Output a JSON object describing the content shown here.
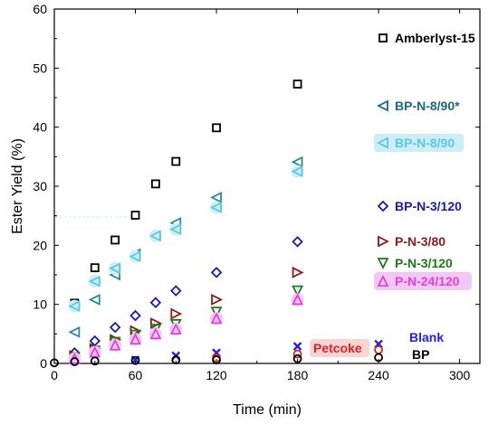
{
  "chart_data": {
    "type": "scatter",
    "xlabel": "Time (min)",
    "ylabel": "Ester Yield (%)",
    "xlim": [
      0,
      315
    ],
    "ylim": [
      0,
      60
    ],
    "xticks": [
      "0",
      "60",
      "120",
      "180",
      "240",
      "300"
    ],
    "yticks": [
      "0",
      "10",
      "20",
      "30",
      "40",
      "50",
      "60"
    ],
    "grid": false,
    "legend_placement": "right, beside data",
    "series": [
      {
        "name": "Amberlyst-15",
        "marker": "square",
        "color": "#000000",
        "x": [
          15,
          30,
          45,
          60,
          75,
          90,
          120,
          180
        ],
        "y": [
          10.2,
          16.2,
          20.9,
          25.1,
          30.4,
          34.2,
          39.9,
          47.3
        ]
      },
      {
        "name": "BP-N-8/90*",
        "marker": "triangle-left",
        "color": "#2a8a9a",
        "x": [
          15,
          30,
          45,
          60,
          90,
          120,
          180
        ],
        "y": [
          5.3,
          10.8,
          15.0,
          18.5,
          23.8,
          28.1,
          34.1
        ]
      },
      {
        "name": "BP-N-8/90",
        "marker": "triangle-left",
        "color": "#5bc8e0",
        "halo": "#cdeef7",
        "x": [
          15,
          30,
          45,
          60,
          75,
          90,
          120,
          180
        ],
        "y": [
          9.7,
          13.9,
          16.1,
          18.1,
          21.6,
          22.7,
          26.4,
          32.5
        ]
      },
      {
        "name": "BP-N-3/120",
        "marker": "diamond",
        "color": "#1a1aa6",
        "x": [
          15,
          30,
          45,
          60,
          75,
          90,
          120,
          180
        ],
        "y": [
          1.8,
          3.8,
          6.1,
          8.1,
          10.3,
          12.3,
          15.4,
          20.6
        ]
      },
      {
        "name": "P-N-3/80",
        "marker": "triangle-right",
        "color": "#8b1a1a",
        "x": [
          15,
          30,
          45,
          60,
          75,
          90,
          120,
          180
        ],
        "y": [
          1.3,
          2.5,
          4.0,
          5.5,
          6.8,
          8.4,
          10.8,
          15.4
        ]
      },
      {
        "name": "P-N-3/120",
        "marker": "triangle-down",
        "color": "#1a7a1a",
        "x": [
          15,
          30,
          45,
          60,
          75,
          90,
          120,
          180
        ],
        "y": [
          1.0,
          2.1,
          3.6,
          4.8,
          5.8,
          6.6,
          8.7,
          12.3
        ]
      },
      {
        "name": "P-N-24/120",
        "marker": "triangle-up",
        "color": "#e040e0",
        "halo": "#f4c8f4",
        "x": [
          15,
          30,
          45,
          60,
          75,
          90,
          120,
          180
        ],
        "y": [
          0.8,
          1.9,
          3.1,
          4.1,
          5.0,
          5.8,
          7.6,
          10.8
        ]
      },
      {
        "name": "Blank",
        "marker": "x",
        "color": "#2222dd",
        "x": [
          60,
          90,
          120,
          180,
          240
        ],
        "y": [
          0.6,
          1.3,
          1.8,
          2.9,
          3.3
        ]
      },
      {
        "name": "Petcoke",
        "marker": "circle",
        "color": "#dd2222",
        "x": [
          90,
          120,
          180,
          240
        ],
        "y": [
          0.6,
          0.9,
          1.6,
          2.3
        ]
      },
      {
        "name": "BP",
        "marker": "circle",
        "color": "#000000",
        "x": [
          0,
          15,
          30,
          60,
          90,
          120,
          180,
          240
        ],
        "y": [
          0.1,
          0.3,
          0.4,
          0.5,
          0.6,
          0.6,
          0.8,
          1.0
        ]
      }
    ],
    "legend": [
      {
        "label": "Amberlyst-15",
        "color": "#000000",
        "marker": "square"
      },
      {
        "label": "BP-N-8/90*",
        "color": "#1a6a7a",
        "marker": "triangle-left"
      },
      {
        "label": "BP-N-8/90",
        "color": "#5bc8e0",
        "marker": "triangle-left",
        "halo": "#cdeef7"
      },
      {
        "label": "BP-N-3/120",
        "color": "#1a1aa6",
        "marker": "diamond"
      },
      {
        "label": "P-N-3/80",
        "color": "#8b1a1a",
        "marker": "triangle-right"
      },
      {
        "label": "P-N-3/120",
        "color": "#1a7a1a",
        "marker": "triangle-down"
      },
      {
        "label": "P-N-24/120",
        "color": "#e040e0",
        "marker": "triangle-up",
        "halo": "#f4c8f4"
      },
      {
        "label": "Blank",
        "color": "#2222dd",
        "marker": "none"
      },
      {
        "label": "Petcoke",
        "color": "#dd2222",
        "marker": "none",
        "halo": "#f8d4d4"
      },
      {
        "label": "BP",
        "color": "#000000",
        "marker": "none"
      }
    ]
  }
}
